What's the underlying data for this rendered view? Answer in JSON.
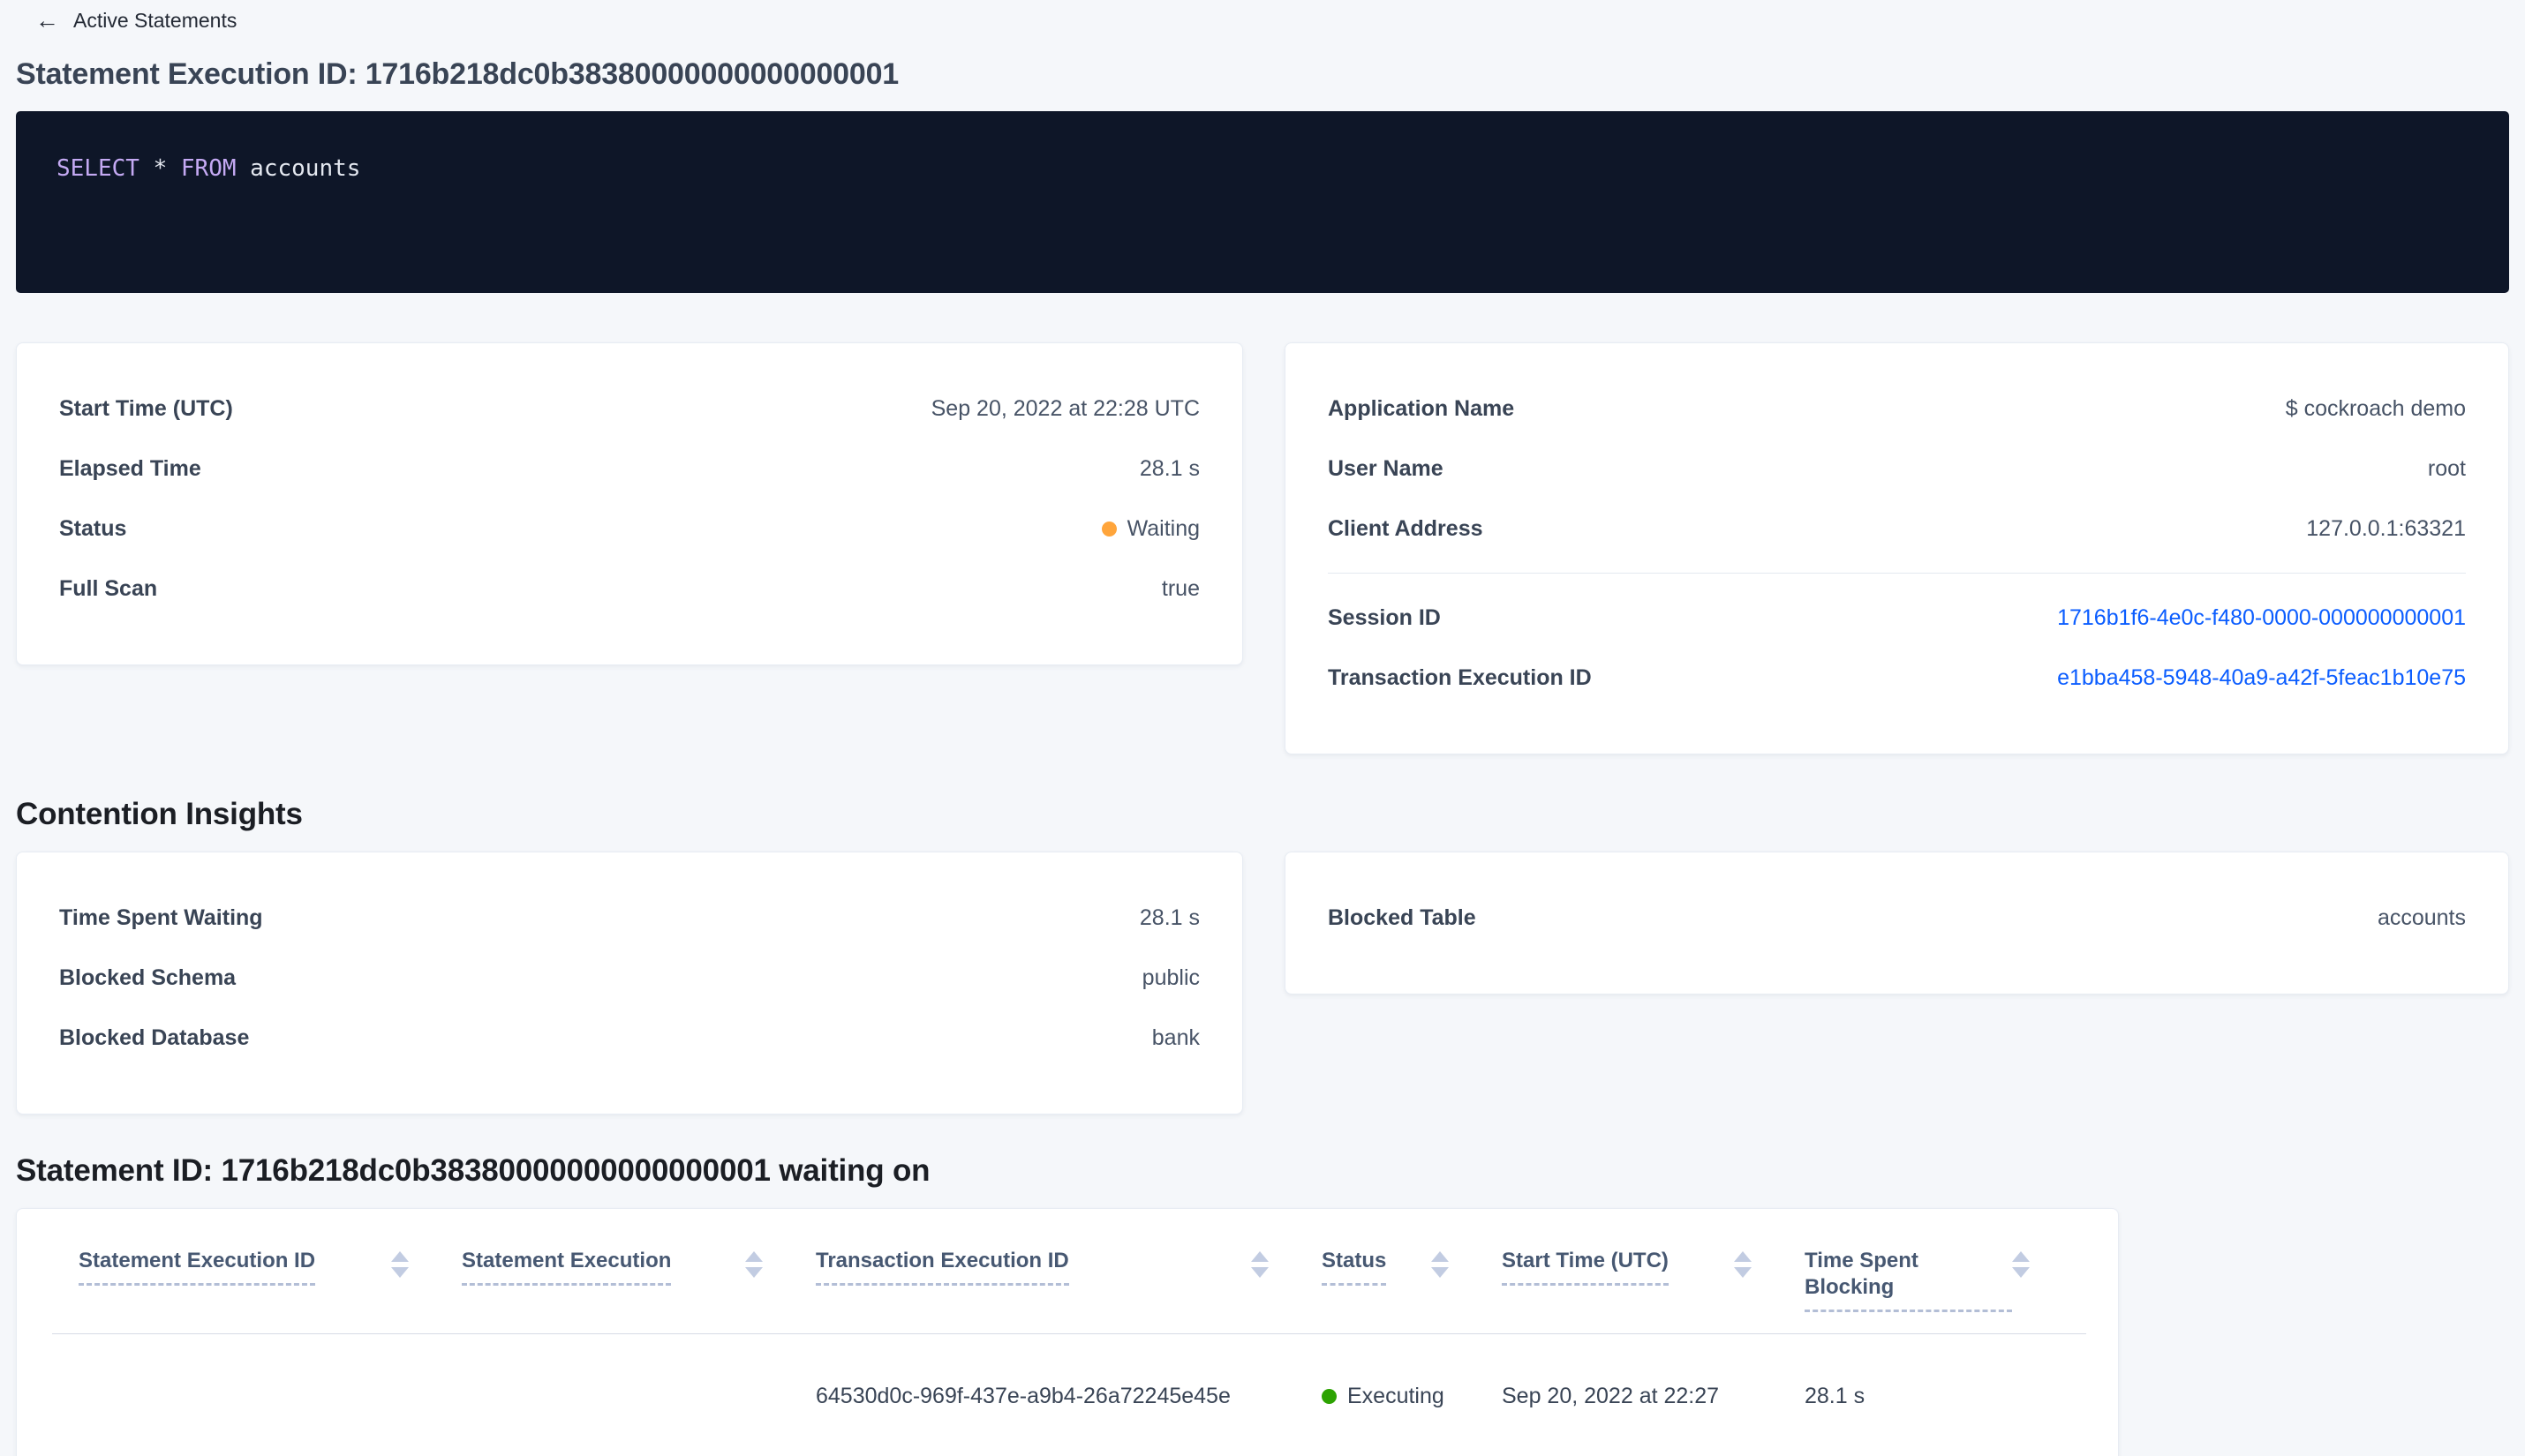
{
  "icons": {
    "back_arrow": "←"
  },
  "colors": {
    "page_background": "#f5f7fa",
    "link": "#0b5dff",
    "status_waiting": "#ffa53b",
    "status_executing": "#2da302",
    "sql_background": "#0e1628",
    "sql_keyword": "#c4a9f3"
  },
  "header": {
    "back_label": "Active Statements",
    "title": "Statement Execution ID: 1716b218dc0b38380000000000000001"
  },
  "sql": {
    "keyword_select": "SELECT",
    "star": "*",
    "keyword_from": "FROM",
    "table_name": "accounts"
  },
  "execution_details": {
    "rows": [
      {
        "label": "Start Time (UTC)",
        "value": "Sep 20, 2022 at 22:28 UTC"
      },
      {
        "label": "Elapsed Time",
        "value": "28.1 s"
      },
      {
        "label": "Status",
        "value": "Waiting"
      },
      {
        "label": "Full Scan",
        "value": "true"
      }
    ]
  },
  "session_details": {
    "rows": [
      {
        "label": "Application Name",
        "value": "$ cockroach demo"
      },
      {
        "label": "User Name",
        "value": "root"
      },
      {
        "label": "Client Address",
        "value": "127.0.0.1:63321"
      }
    ],
    "link_rows": [
      {
        "label": "Session ID",
        "value": "1716b1f6-4e0c-f480-0000-000000000001"
      },
      {
        "label": "Transaction Execution ID",
        "value": "e1bba458-5948-40a9-a42f-5feac1b10e75"
      }
    ]
  },
  "contention": {
    "heading": "Contention Insights",
    "left_rows": [
      {
        "label": "Time Spent Waiting",
        "value": "28.1 s"
      },
      {
        "label": "Blocked Schema",
        "value": "public"
      },
      {
        "label": "Blocked Database",
        "value": "bank"
      }
    ],
    "right_rows": [
      {
        "label": "Blocked Table",
        "value": "accounts"
      }
    ]
  },
  "waiting_on": {
    "heading": "Statement ID: 1716b218dc0b38380000000000000001 waiting on",
    "columns": [
      "Statement Execution ID",
      "Statement Execution",
      "Transaction Execution ID",
      "Status",
      "Start Time (UTC)",
      "Time Spent Blocking"
    ],
    "row": {
      "statement_execution_id": "",
      "statement_execution": "",
      "transaction_execution_id": "64530d0c-969f-437e-a9b4-26a72245e45e",
      "status": "Executing",
      "start_time": "Sep 20, 2022 at 22:27",
      "time_spent_blocking": "28.1 s"
    }
  }
}
